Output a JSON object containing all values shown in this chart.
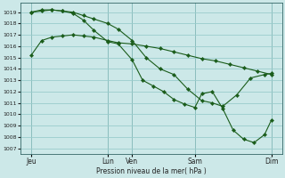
{
  "background_color": "#cce8e8",
  "grid_color": "#99cccc",
  "line_color": "#1a5c1a",
  "marker_color": "#1a5c1a",
  "xlabel": "Pression niveau de la mer( hPa )",
  "ylim": [
    1006.5,
    1019.8
  ],
  "yticks": [
    1007,
    1008,
    1009,
    1010,
    1011,
    1012,
    1013,
    1014,
    1015,
    1016,
    1017,
    1018,
    1019
  ],
  "xlim": [
    0,
    7.5
  ],
  "xtick_positions": [
    0.3,
    2.5,
    3.2,
    5.0,
    7.2
  ],
  "xtick_labels": [
    "Jeu",
    "Lun",
    "Ven",
    "Sam",
    "Dim"
  ],
  "vlines": [
    0.3,
    2.5,
    3.2,
    5.0,
    7.2
  ],
  "series1_x": [
    0.3,
    0.6,
    0.9,
    1.2,
    1.5,
    1.8,
    2.1,
    2.5,
    2.8,
    3.2,
    3.6,
    4.0,
    4.4,
    4.8,
    5.2,
    5.6,
    6.0,
    6.4,
    6.8,
    7.2
  ],
  "series1_y": [
    1015.2,
    1016.5,
    1016.8,
    1016.9,
    1017.0,
    1016.9,
    1016.8,
    1016.5,
    1016.3,
    1016.2,
    1016.0,
    1015.8,
    1015.5,
    1015.2,
    1014.9,
    1014.7,
    1014.4,
    1014.1,
    1013.8,
    1013.5
  ],
  "series2_x": [
    0.3,
    0.6,
    0.9,
    1.2,
    1.5,
    1.8,
    2.1,
    2.5,
    2.8,
    3.2,
    3.6,
    4.0,
    4.4,
    4.8,
    5.2,
    5.5,
    5.8,
    6.2,
    6.6,
    7.0,
    7.2
  ],
  "series2_y": [
    1019.0,
    1019.1,
    1019.2,
    1019.1,
    1019.0,
    1018.7,
    1018.4,
    1018.0,
    1017.5,
    1016.5,
    1015.0,
    1014.0,
    1013.5,
    1012.2,
    1011.2,
    1011.0,
    1010.7,
    1011.7,
    1013.2,
    1013.5,
    1013.6
  ],
  "series3_x": [
    0.3,
    0.6,
    0.9,
    1.2,
    1.5,
    1.8,
    2.1,
    2.5,
    2.8,
    3.2,
    3.5,
    3.8,
    4.1,
    4.4,
    4.7,
    5.0,
    5.2,
    5.5,
    5.8,
    6.1,
    6.4,
    6.7,
    7.0,
    7.2
  ],
  "series3_y": [
    1019.0,
    1019.2,
    1019.2,
    1019.1,
    1018.9,
    1018.3,
    1017.4,
    1016.4,
    1016.2,
    1014.8,
    1013.0,
    1012.5,
    1012.0,
    1011.3,
    1010.9,
    1010.6,
    1011.8,
    1012.0,
    1010.5,
    1008.6,
    1007.8,
    1007.5,
    1008.2,
    1009.5
  ]
}
